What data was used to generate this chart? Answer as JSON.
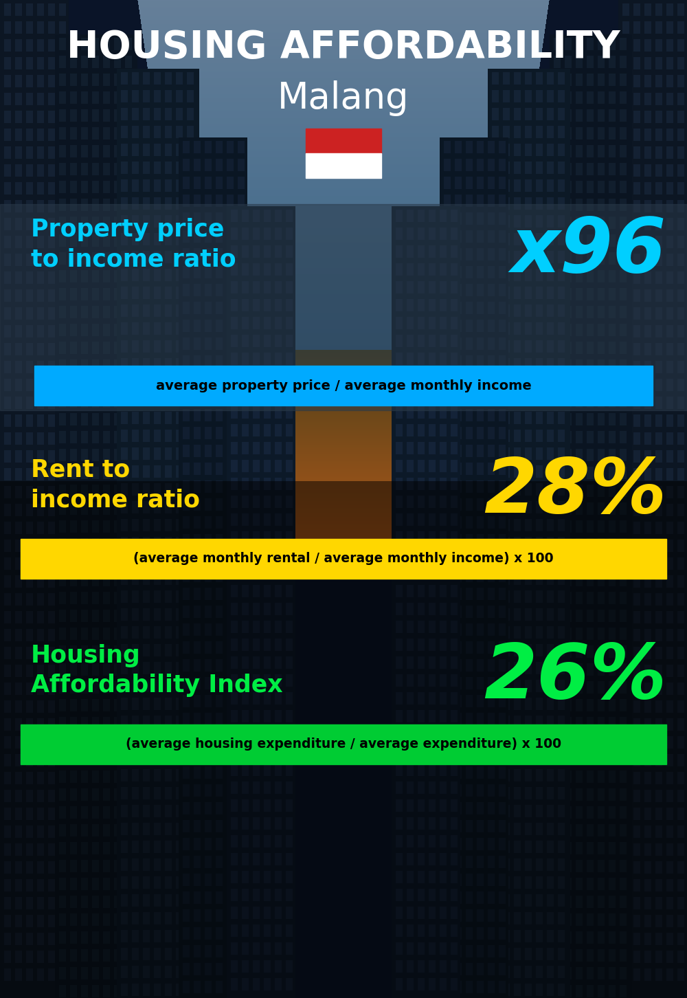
{
  "title_line1": "HOUSING AFFORDABILITY",
  "title_line2": "Malang",
  "bg_color": "#0a1628",
  "title1_color": "#ffffff",
  "title2_color": "#ffffff",
  "section1_label": "Property price\nto income ratio",
  "section1_value": "x96",
  "section1_label_color": "#00cfff",
  "section1_value_color": "#00cfff",
  "section1_banner": "average property price / average monthly income",
  "section1_banner_bg": "#00aaff",
  "section1_banner_color": "#000000",
  "section2_label": "Rent to\nincome ratio",
  "section2_value": "28%",
  "section2_label_color": "#ffd700",
  "section2_value_color": "#ffd700",
  "section2_banner": "(average monthly rental / average monthly income) x 100",
  "section2_banner_bg": "#ffd700",
  "section2_banner_color": "#000000",
  "section3_label": "Housing\nAffordability Index",
  "section3_value": "26%",
  "section3_label_color": "#00ee44",
  "section3_value_color": "#00ee44",
  "section3_banner": "(average housing expenditure / average expenditure) x 100",
  "section3_banner_bg": "#00cc33",
  "section3_banner_color": "#000000",
  "flag_red": "#cc2222",
  "flag_white": "#ffffff",
  "panel1_color": "#2a3a4a",
  "panel1_alpha": 0.55
}
